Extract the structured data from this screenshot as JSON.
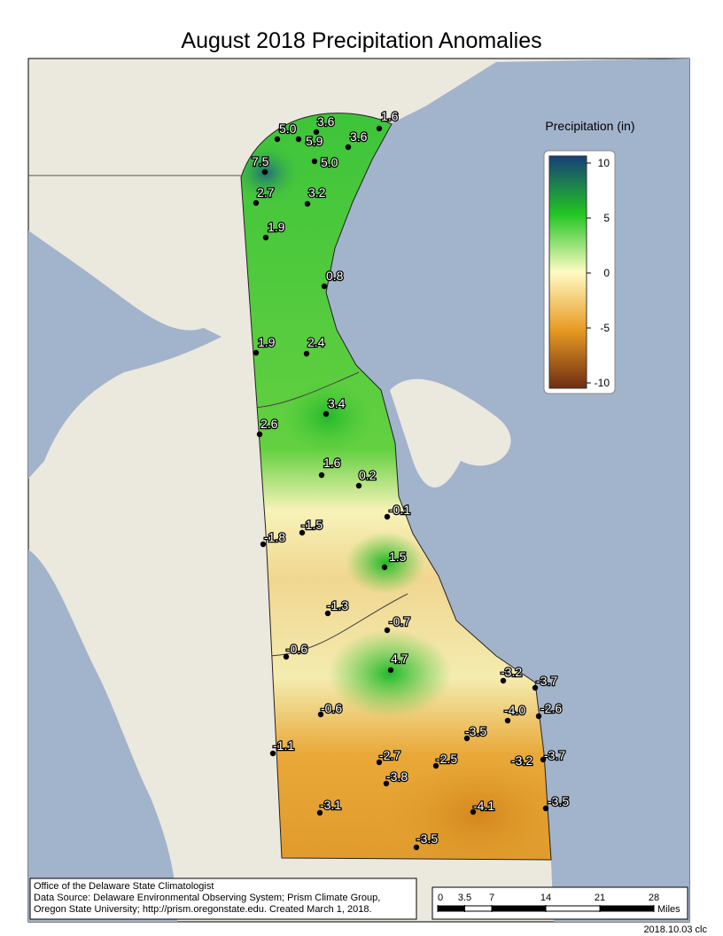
{
  "title": "August 2018 Precipitation Anomalies",
  "legend": {
    "title": "Precipitation (in)",
    "ticks": [
      10,
      5,
      0,
      -5,
      -10
    ]
  },
  "stations": [
    "1.6",
    "5.0",
    "3.6",
    "5.9",
    "3.6",
    "7.5",
    "5.0",
    "2.7",
    "3.2",
    "1.9",
    "0.8",
    "1.9",
    "2.4",
    "3.4",
    "2.6",
    "1.6",
    "0.2",
    "-0.1",
    "-1.8",
    "-1.5",
    "1.5",
    "-1.3",
    "-0.7",
    "-0.6",
    "4.7",
    "-3.2",
    "-3.7",
    "-4.0",
    "-2.6",
    "-0.6",
    "-3.5",
    "-1.1",
    "-2.7",
    "-2.5",
    "-3.2",
    "-3.7",
    "-3.8",
    "-4.1",
    "-3.5",
    "-3.1",
    "-3.5"
  ],
  "scale_bar": {
    "ticks": [
      0,
      3.5,
      7,
      14,
      21,
      28
    ],
    "unit": "Miles"
  },
  "credits": [
    "Office of the Delaware State Climatologist",
    "Data Source: Delaware Environmental Observing System; Prism Climate Group,",
    "Oregon State University; http://prism.oregonstate.edu.  Created March 1, 2018."
  ],
  "stamp": "2018.10.03 clc"
}
